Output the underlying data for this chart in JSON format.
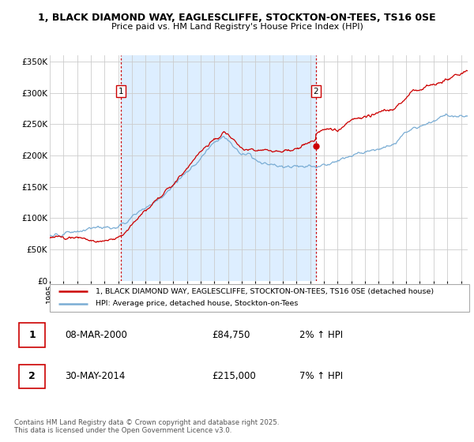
{
  "title_line1": "1, BLACK DIAMOND WAY, EAGLESCLIFFE, STOCKTON-ON-TEES, TS16 0SE",
  "title_line2": "Price paid vs. HM Land Registry's House Price Index (HPI)",
  "ylabel_ticks": [
    "£0",
    "£50K",
    "£100K",
    "£150K",
    "£200K",
    "£250K",
    "£300K",
    "£350K"
  ],
  "ytick_values": [
    0,
    50000,
    100000,
    150000,
    200000,
    250000,
    300000,
    350000
  ],
  "ylim": [
    0,
    360000
  ],
  "xlim_start": 1995.0,
  "xlim_end": 2025.5,
  "red_line_color": "#cc0000",
  "blue_line_color": "#7aadd4",
  "shading_color": "#ddeeff",
  "grid_color": "#cccccc",
  "vline_color": "#cc0000",
  "marker1_x": 2000.19,
  "marker1_y": 84750,
  "marker1_label": "1",
  "marker2_x": 2014.41,
  "marker2_y": 215000,
  "marker2_label": "2",
  "legend_line1": "1, BLACK DIAMOND WAY, EAGLESCLIFFE, STOCKTON-ON-TEES, TS16 0SE (detached house)",
  "legend_line2": "HPI: Average price, detached house, Stockton-on-Tees",
  "table_row1": [
    "1",
    "08-MAR-2000",
    "£84,750",
    "2% ↑ HPI"
  ],
  "table_row2": [
    "2",
    "30-MAY-2014",
    "£215,000",
    "7% ↑ HPI"
  ],
  "footnote": "Contains HM Land Registry data © Crown copyright and database right 2025.\nThis data is licensed under the Open Government Licence v3.0.",
  "background_color": "#ffffff",
  "xtick_years": [
    1995,
    1996,
    1997,
    1998,
    1999,
    2000,
    2001,
    2002,
    2003,
    2004,
    2005,
    2006,
    2007,
    2008,
    2009,
    2010,
    2011,
    2012,
    2013,
    2014,
    2015,
    2016,
    2017,
    2018,
    2019,
    2020,
    2021,
    2022,
    2023,
    2024,
    2025
  ]
}
